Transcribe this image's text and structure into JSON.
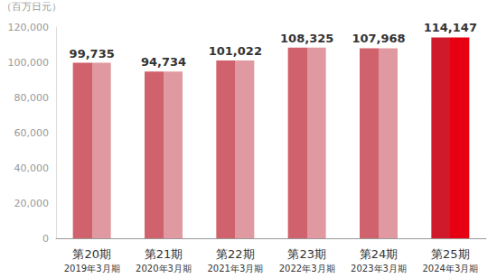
{
  "chart_data": {
    "type": "bar",
    "y_label": "（百万日元）",
    "categories": [
      "第20期\n2019年3月期",
      "第21期\n2020年3月期",
      "第22期\n2021年3月期",
      "第23期\n2022年3月期",
      "第24期\n2023年3月期",
      "第25期\n2024年3月期"
    ],
    "values": [
      99735,
      94734,
      101022,
      108325,
      107968,
      114147
    ],
    "value_labels": [
      "99,735",
      "94,734",
      "101,022",
      "108,325",
      "107,968",
      "114,147"
    ],
    "colors": [
      "#d0626d",
      "#d0626d",
      "#d0626d",
      "#d0626d",
      "#d0626d",
      "#cf1a2c"
    ],
    "ylim": [
      0,
      120000
    ],
    "yticks": [
      0,
      {
        "value": 20000,
        "label": "20,000"
      },
      {
        "value": 40000,
        "label": "40,000"
      },
      {
        "value": 60000,
        "label": "60,000"
      },
      {
        "value": 80000,
        "label": "80,000"
      },
      {
        "value": 100000,
        "label": "100,000"
      },
      {
        "value": 120000,
        "label": "120,000"
      }
    ],
    "grid": false,
    "data_labels": true
  }
}
